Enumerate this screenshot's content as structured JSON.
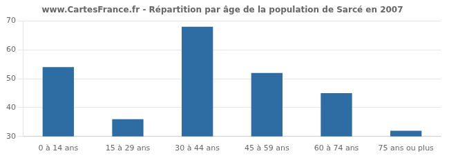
{
  "chart_data": {
    "type": "bar",
    "title": "www.CartesFrance.fr - Répartition par âge de la population de Sarcé en 2007",
    "categories": [
      "0 à 14 ans",
      "15 à 29 ans",
      "30 à 44 ans",
      "45 à 59 ans",
      "60 à 74 ans",
      "75 ans ou plus"
    ],
    "values": [
      54,
      36,
      68,
      52,
      45,
      32
    ],
    "color": "#2e6da4",
    "ylim": [
      30,
      70
    ],
    "yticks": [
      30,
      40,
      50,
      60,
      70
    ],
    "grid": true
  }
}
